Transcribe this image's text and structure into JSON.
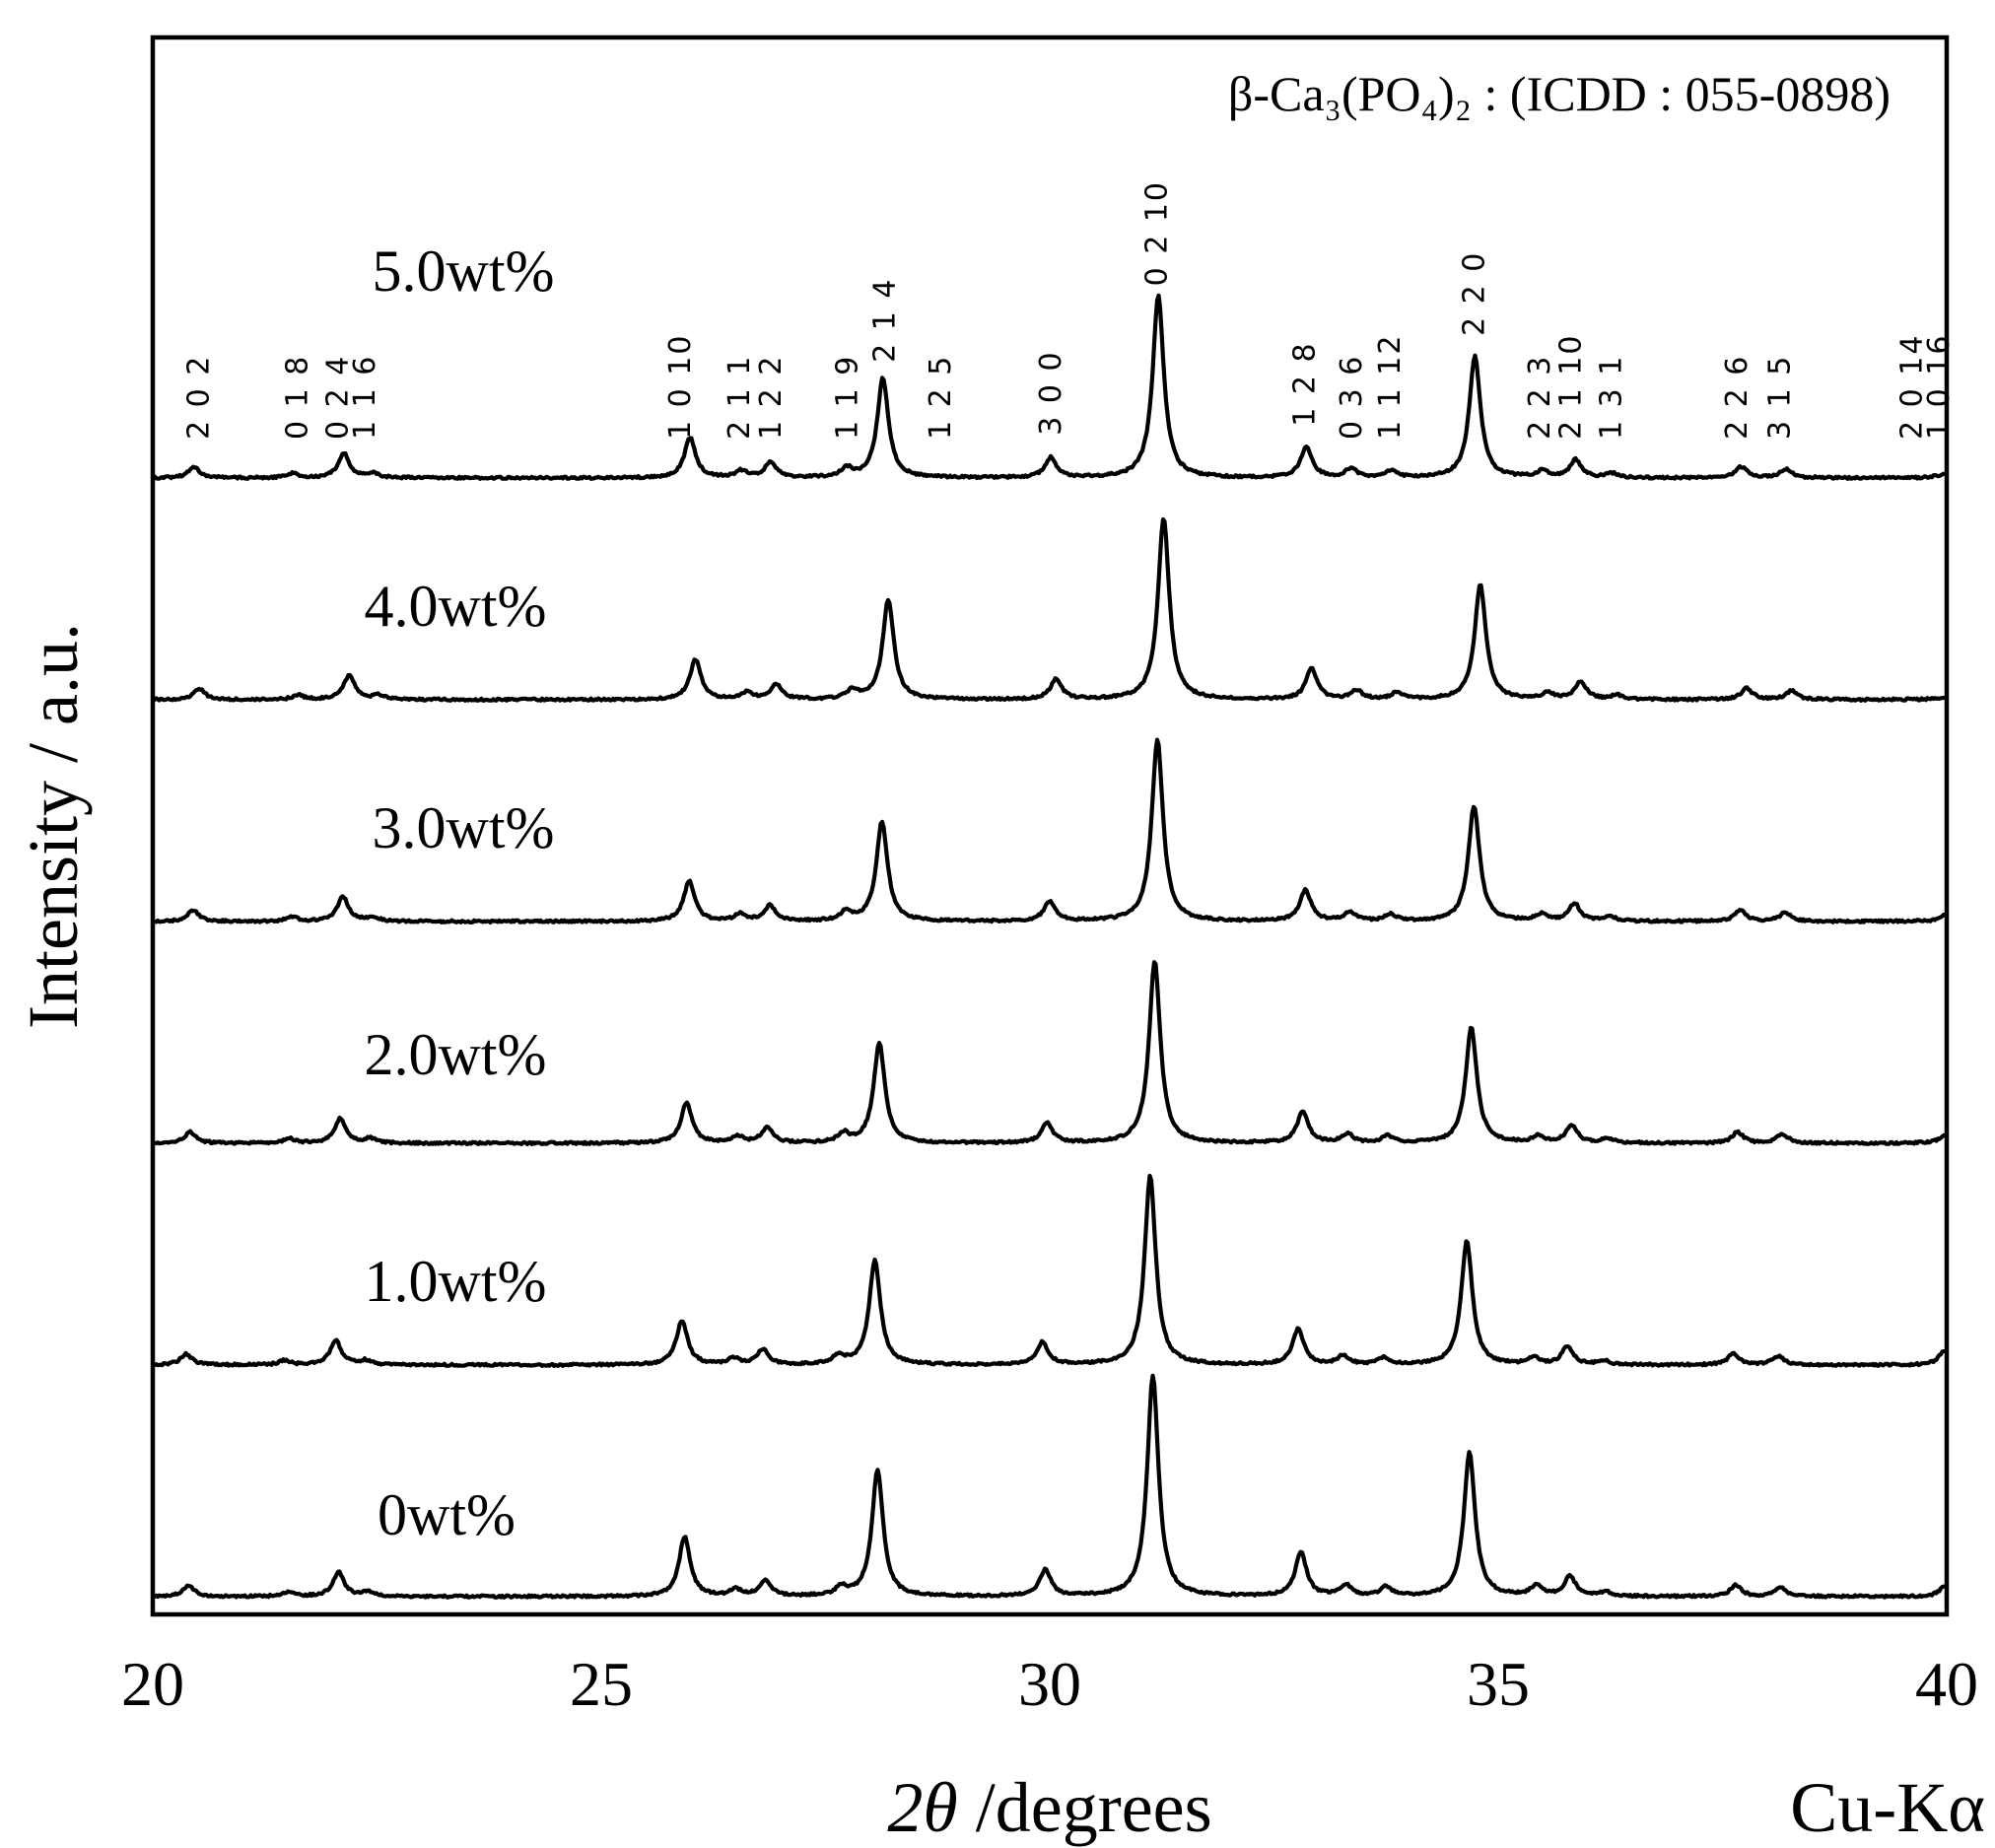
{
  "chart_data": {
    "type": "line",
    "header": "β-Ca₃(PO₄)₂ : (ICDD : 055-0898)",
    "xlabel_prefix": "2θ",
    "xlabel_suffix": " /degrees",
    "ylabel": "Intensity / a.u.",
    "radiation": "Cu-Kα",
    "xlim": [
      20,
      40
    ],
    "x_ticks": [
      20,
      25,
      30,
      35,
      40
    ],
    "grid": false,
    "legend": "none",
    "y_units": "arbitrary (stacked, offset traces)",
    "series": [
      {
        "name": "5.0wt%",
        "shift": 0.06,
        "peaks": [
          [
            20.4,
            0.05
          ],
          [
            21.5,
            0.02
          ],
          [
            22.07,
            0.11
          ],
          [
            22.4,
            0.02
          ],
          [
            25.93,
            0.18
          ],
          [
            26.5,
            0.03
          ],
          [
            26.83,
            0.07
          ],
          [
            27.68,
            0.04
          ],
          [
            28.08,
            0.45
          ],
          [
            29.95,
            0.09
          ],
          [
            31.15,
            0.82
          ],
          [
            32.8,
            0.14
          ],
          [
            33.3,
            0.04
          ],
          [
            33.75,
            0.03
          ],
          [
            34.68,
            0.55
          ],
          [
            35.43,
            0.03
          ],
          [
            35.8,
            0.08
          ],
          [
            36.2,
            0.02
          ],
          [
            37.65,
            0.05
          ],
          [
            38.15,
            0.04
          ],
          [
            40.0,
            0.06
          ]
        ]
      },
      {
        "name": "4.0wt%",
        "shift": 0.12,
        "peaks": [
          [
            20.4,
            0.05
          ],
          [
            21.5,
            0.02
          ],
          [
            22.07,
            0.11
          ],
          [
            22.4,
            0.02
          ],
          [
            25.93,
            0.18
          ],
          [
            26.5,
            0.03
          ],
          [
            26.83,
            0.07
          ],
          [
            27.68,
            0.04
          ],
          [
            28.08,
            0.45
          ],
          [
            29.95,
            0.09
          ],
          [
            31.15,
            0.82
          ],
          [
            32.8,
            0.14
          ],
          [
            33.3,
            0.04
          ],
          [
            33.75,
            0.03
          ],
          [
            34.68,
            0.52
          ],
          [
            35.43,
            0.03
          ],
          [
            35.8,
            0.08
          ],
          [
            36.2,
            0.02
          ],
          [
            37.65,
            0.05
          ],
          [
            38.15,
            0.04
          ],
          [
            40.0,
            0.06
          ]
        ]
      },
      {
        "name": "3.0wt%",
        "shift": 0.05,
        "peaks": [
          [
            20.4,
            0.05
          ],
          [
            21.5,
            0.02
          ],
          [
            22.07,
            0.11
          ],
          [
            22.4,
            0.02
          ],
          [
            25.93,
            0.18
          ],
          [
            26.5,
            0.03
          ],
          [
            26.83,
            0.07
          ],
          [
            27.68,
            0.04
          ],
          [
            28.08,
            0.45
          ],
          [
            29.95,
            0.09
          ],
          [
            31.15,
            0.82
          ],
          [
            32.8,
            0.14
          ],
          [
            33.3,
            0.04
          ],
          [
            33.75,
            0.03
          ],
          [
            34.68,
            0.52
          ],
          [
            35.43,
            0.03
          ],
          [
            35.8,
            0.08
          ],
          [
            36.2,
            0.02
          ],
          [
            37.65,
            0.05
          ],
          [
            38.15,
            0.04
          ],
          [
            40.0,
            0.06
          ]
        ]
      },
      {
        "name": "2.0wt%",
        "shift": 0.02,
        "peaks": [
          [
            20.4,
            0.05
          ],
          [
            21.5,
            0.02
          ],
          [
            22.07,
            0.11
          ],
          [
            22.4,
            0.02
          ],
          [
            25.93,
            0.18
          ],
          [
            26.5,
            0.03
          ],
          [
            26.83,
            0.07
          ],
          [
            27.68,
            0.04
          ],
          [
            28.08,
            0.45
          ],
          [
            29.95,
            0.09
          ],
          [
            31.15,
            0.82
          ],
          [
            32.8,
            0.14
          ],
          [
            33.3,
            0.04
          ],
          [
            33.75,
            0.03
          ],
          [
            34.68,
            0.52
          ],
          [
            35.43,
            0.03
          ],
          [
            35.8,
            0.08
          ],
          [
            36.2,
            0.02
          ],
          [
            37.65,
            0.05
          ],
          [
            38.15,
            0.04
          ],
          [
            40.0,
            0.06
          ]
        ]
      },
      {
        "name": "1.0wt%",
        "shift": -0.03,
        "peaks": [
          [
            20.4,
            0.05
          ],
          [
            21.5,
            0.02
          ],
          [
            22.07,
            0.11
          ],
          [
            22.4,
            0.02
          ],
          [
            25.93,
            0.2
          ],
          [
            26.5,
            0.03
          ],
          [
            26.83,
            0.07
          ],
          [
            27.68,
            0.04
          ],
          [
            28.08,
            0.47
          ],
          [
            29.95,
            0.1
          ],
          [
            31.15,
            0.85
          ],
          [
            32.8,
            0.16
          ],
          [
            33.3,
            0.04
          ],
          [
            33.75,
            0.03
          ],
          [
            34.68,
            0.56
          ],
          [
            35.43,
            0.03
          ],
          [
            35.8,
            0.08
          ],
          [
            36.2,
            0.02
          ],
          [
            37.65,
            0.05
          ],
          [
            38.15,
            0.04
          ],
          [
            40.0,
            0.06
          ]
        ]
      },
      {
        "name": "0wt%",
        "shift": 0.0,
        "peaks": [
          [
            20.4,
            0.05
          ],
          [
            21.5,
            0.02
          ],
          [
            22.07,
            0.11
          ],
          [
            22.4,
            0.02
          ],
          [
            25.93,
            0.27
          ],
          [
            26.5,
            0.03
          ],
          [
            26.83,
            0.07
          ],
          [
            27.68,
            0.04
          ],
          [
            28.08,
            0.57
          ],
          [
            29.95,
            0.12
          ],
          [
            31.15,
            1.0
          ],
          [
            32.8,
            0.2
          ],
          [
            33.3,
            0.05
          ],
          [
            33.75,
            0.04
          ],
          [
            34.68,
            0.65
          ],
          [
            35.43,
            0.05
          ],
          [
            35.8,
            0.09
          ],
          [
            36.2,
            0.02
          ],
          [
            37.65,
            0.05
          ],
          [
            38.15,
            0.04
          ],
          [
            40.0,
            0.06
          ]
        ]
      }
    ],
    "hkl_labels": [
      {
        "text": "2 0 2",
        "x": 20.45
      },
      {
        "text": "0 1 8",
        "x": 21.55
      },
      {
        "text": "0 2 4",
        "x": 22.0
      },
      {
        "text": "1 1 6",
        "x": 22.3
      },
      {
        "text": "1 0 10",
        "x": 25.82
      },
      {
        "text": "2 1 1",
        "x": 26.48
      },
      {
        "text": "1 2 2",
        "x": 26.83
      },
      {
        "text": "1 1 9",
        "x": 27.68
      },
      {
        "text": "2 1 4",
        "x": 28.1
      },
      {
        "text": "1 2 5",
        "x": 28.72
      },
      {
        "text": "3 0 0",
        "x": 29.95
      },
      {
        "text": "0 2 10",
        "x": 31.13
      },
      {
        "text": "1 2 8",
        "x": 32.78
      },
      {
        "text": "0 3 6",
        "x": 33.3
      },
      {
        "text": "1 1 12",
        "x": 33.73
      },
      {
        "text": "2 2 0",
        "x": 34.67
      },
      {
        "text": "2 2 3",
        "x": 35.4
      },
      {
        "text": "2 1 10",
        "x": 35.75
      },
      {
        "text": "1 3 1",
        "x": 36.2
      },
      {
        "text": "2 2 6",
        "x": 37.6
      },
      {
        "text": "3 1 5",
        "x": 38.08
      },
      {
        "text": "2 0 14",
        "x": 39.55
      },
      {
        "text": "1 0 16",
        "x": 39.85
      }
    ]
  }
}
